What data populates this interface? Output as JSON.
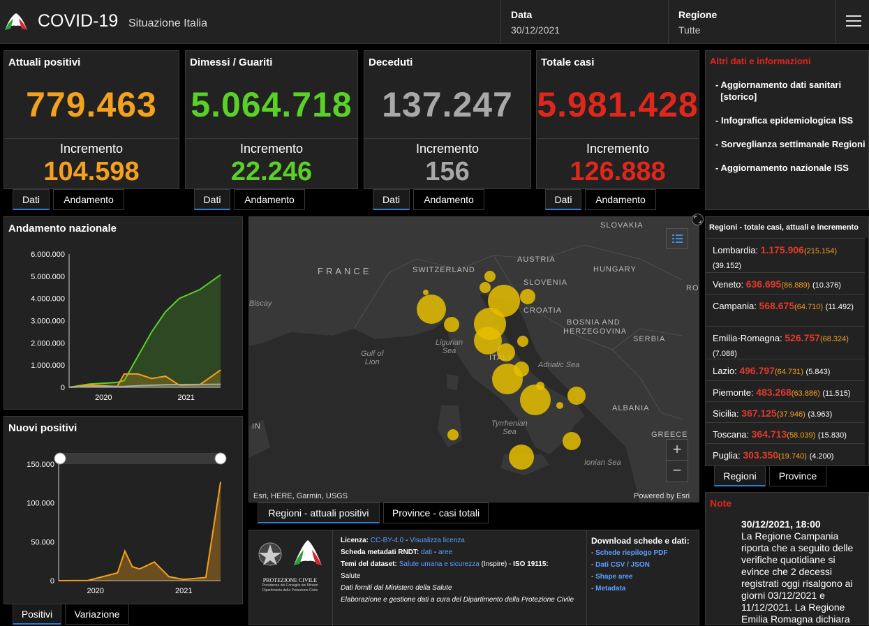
{
  "header": {
    "title": "COVID-19",
    "subtitle": "Situazione Italia",
    "date_label": "Data",
    "date_value": "30/12/2021",
    "region_label": "Regione",
    "region_value": "Tutte"
  },
  "cards": [
    {
      "title": "Attuali positivi",
      "value": "779.463",
      "inc_label": "Incremento",
      "inc": "104.598",
      "color": "#f4a11d"
    },
    {
      "title": "Dimessi / Guariti",
      "value": "5.064.718",
      "inc_label": "Incremento",
      "inc": "22.246",
      "color": "#59d127"
    },
    {
      "title": "Deceduti",
      "value": "137.247",
      "inc_label": "Incremento",
      "inc": "156",
      "color": "#a8a8a8"
    },
    {
      "title": "Totale casi",
      "value": "5.981.428",
      "inc_label": "Incremento",
      "inc": "126.888",
      "color": "#e0271c"
    }
  ],
  "card_tabs": {
    "dati": "Dati",
    "andamento": "Andamento"
  },
  "info": {
    "title": "Altri dati e informazioni",
    "items": [
      "- Aggiornamento dati sanitari\n  [storico]",
      "- Infografica epidemiologica ISS",
      "- Sorveglianza settimanale Regioni",
      "- Aggiornamento nazionale ISS"
    ]
  },
  "andamento": {
    "title": "Andamento nazionale",
    "yticks": [
      "6.000.000",
      "5.000.000",
      "4.000.000",
      "3.000.000",
      "2.000.000",
      "1.000.000",
      "0"
    ],
    "xticks": [
      "2020",
      "2021"
    ]
  },
  "nuovi": {
    "title": "Nuovi positivi",
    "yticks": [
      "150.000",
      "100.000",
      "50.000",
      "0"
    ],
    "xticks": [
      "2020",
      "2021"
    ],
    "tabs": [
      "Positivi",
      "Variazione"
    ]
  },
  "chart_data": [
    {
      "type": "area",
      "title": "Andamento nazionale",
      "ylim": [
        0,
        6000000
      ],
      "x": [
        "2020-02",
        "2020-05",
        "2020-09",
        "2020-10",
        "2020-12",
        "2021-02",
        "2021-04",
        "2021-06",
        "2021-09",
        "2021-12"
      ],
      "series": [
        {
          "color": "#59d127",
          "values": [
            0,
            150000,
            220000,
            300000,
            1400000,
            2500000,
            3400000,
            4000000,
            4400000,
            5064718
          ]
        },
        {
          "color": "#f4a11d",
          "values": [
            0,
            100000,
            40000,
            600000,
            600000,
            400000,
            500000,
            100000,
            120000,
            779463
          ]
        },
        {
          "color": "#a8a8a8",
          "values": [
            0,
            30000,
            36000,
            40000,
            70000,
            95000,
            115000,
            127000,
            130000,
            137247
          ]
        }
      ]
    },
    {
      "type": "area",
      "title": "Nuovi positivi",
      "ylim": [
        0,
        150000
      ],
      "x": [
        "2020-02",
        "2020-06",
        "2020-10",
        "2020-11",
        "2020-12",
        "2021-01",
        "2021-03",
        "2021-05",
        "2021-07",
        "2021-10",
        "2021-12"
      ],
      "series": [
        {
          "color": "#f4a11d",
          "values": [
            0,
            300,
            10000,
            38000,
            18000,
            15000,
            24000,
            5000,
            1500,
            4000,
            126888
          ]
        }
      ]
    }
  ],
  "map": {
    "labels": [
      "SLOVAKIA",
      "AUSTRIA",
      "HUNGARY",
      "FRANCE",
      "SWITZERLAND",
      "SLOVENIA",
      "CROATIA",
      "BOSNIA AND",
      "HERZEGOVINA",
      "SERBIA",
      "ITALY",
      "ALBANIA",
      "GREECE",
      "ROI",
      "Biscay",
      "IN"
    ],
    "seas": [
      "Ligurian\nSea",
      "Gulf of\nLion",
      "Adriatic Sea",
      "Tyrrhenian\nSea",
      "Ionian Sea"
    ],
    "attribution": "Esri, HERE, Garmin, USGS",
    "powered": "Powered by Esri",
    "tabs": [
      "Regioni - attuali positivi",
      "Province - casi totali"
    ]
  },
  "regions": {
    "title": "Regioni - totale casi, attuali e incremento",
    "rows": [
      {
        "name": "Lombardia:",
        "tot": "1.175.906",
        "att": "(215.154)",
        "inc": "(39.152)"
      },
      {
        "name": "Veneto:",
        "tot": "636.695",
        "att": "(86.889)",
        "inc": "(10.376)"
      },
      {
        "name": "Campania:",
        "tot": "568.675",
        "att": "(64.710)",
        "inc": "(11.492)"
      },
      {
        "name": "Emilia-Romagna:",
        "tot": "526.757",
        "att": "(68.324)",
        "inc": "(7.088)"
      },
      {
        "name": "Lazio:",
        "tot": "496.797",
        "att": "(64.731)",
        "inc": "(5.843)"
      },
      {
        "name": "Piemonte:",
        "tot": "483.268",
        "att": "(63.886)",
        "inc": "(11.515)"
      },
      {
        "name": "Sicilia:",
        "tot": "367.125",
        "att": "(37.946)",
        "inc": "(3.963)"
      },
      {
        "name": "Toscana:",
        "tot": "364.713",
        "att": "(58.039)",
        "inc": "(15.830)"
      },
      {
        "name": "Puglia:",
        "tot": "303.350",
        "att": "(19.740)",
        "inc": "(4.200)"
      }
    ],
    "tabs": [
      "Regioni",
      "Province"
    ]
  },
  "licenza": {
    "l1a": "Licenza: ",
    "l1b": "CC-BY-4.0",
    "l1c": " - ",
    "l1d": "Visualizza licenza",
    "l2a": "Scheda metadati RNDT: ",
    "l2b": "dati",
    "l2c": " - ",
    "l2d": "aree",
    "l3a": "Temi del dataset: ",
    "l3b": "Salute umana e sicurezza",
    "l3c": " (Inspire) - ",
    "l3d": "ISO 19115:",
    "l4": "Salute",
    "l5": "Dati forniti dal Ministero della Salute",
    "l6": "Elaborazione e gestione dati a cura del Dipartimento della Protezione Civile",
    "logo_text": "PROTEZIONE CIVILE",
    "logo_sub": "Presidenza del Consiglio dei Ministri\nDipartimento della Protezione Civile"
  },
  "download": {
    "title": "Download schede e dati:",
    "items": [
      "Schede riepilogo PDF",
      "Dati CSV / JSON",
      "Shape aree",
      "Metadata"
    ]
  },
  "note": {
    "title": "Note",
    "date": "30/12/2021, 18:00",
    "text": "La Regione Campania riporta che a seguito delle verifiche quotidiane si evince che 2 decessi registrati oggi risalgono ai giorni 03/12/2021 e 11/12/2021. La Regione Emilia Romagna dichiara"
  }
}
